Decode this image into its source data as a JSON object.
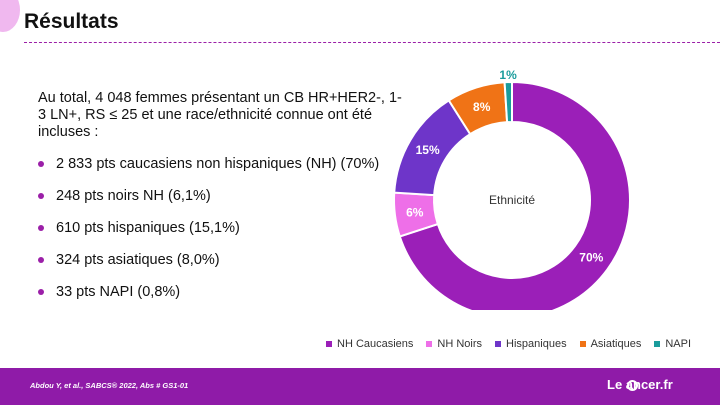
{
  "header": {
    "title": "Résultats"
  },
  "intro_text": "Au total, 4 048 femmes présentant un CB HR+HER2-, 1-3 LN+, RS ≤ 25 et une race/ethnicité connue ont été incluses :",
  "bullets": [
    "2 833 pts caucasiens non hispaniques (NH) (70%)",
    "248 pts noirs NH (6,1%)",
    "610 pts hispaniques (15,1%)",
    "324 pts asiatiques (8,0%)",
    "33 pts NAPI (0,8%)"
  ],
  "chart_data": {
    "type": "pie",
    "donut": true,
    "center_label": "Ethnicité",
    "categories": [
      "NH Caucasiens",
      "NH Noirs",
      "Hispaniques",
      "Asiatiques",
      "NAPI"
    ],
    "values": [
      70,
      6,
      15,
      8,
      1
    ],
    "data_labels": [
      "70%",
      "6%",
      "15%",
      "8%",
      "1%"
    ],
    "colors": [
      "#9b1fb8",
      "#ee6fe8",
      "#6e35c9",
      "#f07316",
      "#1a9c9c"
    ],
    "legend_position": "bottom"
  },
  "footer": {
    "citation": "Abdou Y, et al., SABCS® 2022, Abs # GS1-01",
    "logo_text": "Le  ancer.fr"
  }
}
